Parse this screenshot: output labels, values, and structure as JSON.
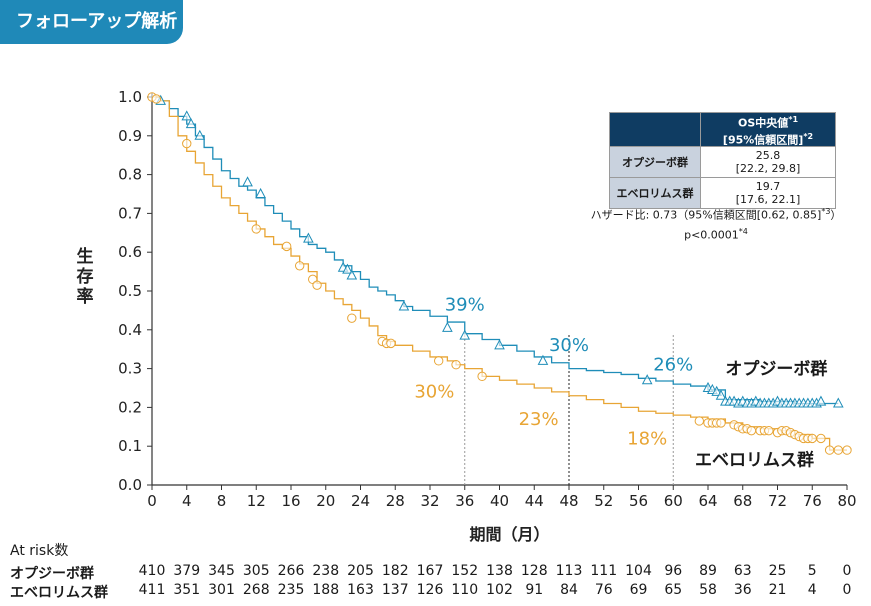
{
  "header": {
    "tag": "フォローアップ解析"
  },
  "chart_data": {
    "type": "line",
    "step": true,
    "xlabel": "期間（月）",
    "ylabel": "生存率",
    "xlim": [
      0,
      80
    ],
    "ylim": [
      0,
      1
    ],
    "xticks": [
      0,
      4,
      8,
      12,
      16,
      20,
      24,
      28,
      32,
      36,
      40,
      44,
      48,
      52,
      56,
      60,
      64,
      68,
      72,
      76,
      80
    ],
    "yticks": [
      "0.0",
      "0.1",
      "0.2",
      "0.3",
      "0.4",
      "0.5",
      "0.6",
      "0.7",
      "0.8",
      "0.9",
      "1.0"
    ],
    "series": [
      {
        "name": "オプジーボ群",
        "color": "#1f8db8",
        "marker": "triangle",
        "points": [
          [
            0,
            1.0
          ],
          [
            1,
            0.99
          ],
          [
            2,
            0.97
          ],
          [
            3,
            0.95
          ],
          [
            4,
            0.93
          ],
          [
            5,
            0.9
          ],
          [
            6,
            0.87
          ],
          [
            7,
            0.84
          ],
          [
            8,
            0.81
          ],
          [
            9,
            0.79
          ],
          [
            10,
            0.77
          ],
          [
            11,
            0.76
          ],
          [
            12,
            0.74
          ],
          [
            13,
            0.72
          ],
          [
            14,
            0.7
          ],
          [
            15,
            0.68
          ],
          [
            16,
            0.66
          ],
          [
            17,
            0.64
          ],
          [
            18,
            0.62
          ],
          [
            19,
            0.61
          ],
          [
            20,
            0.6
          ],
          [
            21,
            0.58
          ],
          [
            22,
            0.565
          ],
          [
            23,
            0.55
          ],
          [
            24,
            0.53
          ],
          [
            25,
            0.51
          ],
          [
            26,
            0.5
          ],
          [
            27,
            0.49
          ],
          [
            28,
            0.475
          ],
          [
            29,
            0.46
          ],
          [
            30,
            0.45
          ],
          [
            32,
            0.435
          ],
          [
            34,
            0.42
          ],
          [
            36,
            0.39
          ],
          [
            38,
            0.375
          ],
          [
            40,
            0.36
          ],
          [
            42,
            0.345
          ],
          [
            44,
            0.33
          ],
          [
            46,
            0.315
          ],
          [
            48,
            0.3
          ],
          [
            50,
            0.295
          ],
          [
            52,
            0.29
          ],
          [
            54,
            0.285
          ],
          [
            56,
            0.275
          ],
          [
            58,
            0.268
          ],
          [
            60,
            0.26
          ],
          [
            62,
            0.255
          ],
          [
            64,
            0.245
          ],
          [
            66,
            0.22
          ],
          [
            70,
            0.215
          ],
          [
            74,
            0.21
          ],
          [
            79,
            0.21
          ]
        ],
        "censor": [
          [
            1,
            0.99
          ],
          [
            4,
            0.95
          ],
          [
            4.5,
            0.93
          ],
          [
            5.5,
            0.9
          ],
          [
            11,
            0.78
          ],
          [
            12.5,
            0.75
          ],
          [
            18,
            0.635
          ],
          [
            22,
            0.56
          ],
          [
            22.5,
            0.555
          ],
          [
            23,
            0.54
          ],
          [
            29,
            0.46
          ],
          [
            34,
            0.405
          ],
          [
            36,
            0.385
          ],
          [
            40,
            0.36
          ],
          [
            45,
            0.32
          ],
          [
            57,
            0.27
          ],
          [
            64,
            0.25
          ],
          [
            64.5,
            0.245
          ],
          [
            65,
            0.24
          ],
          [
            65.5,
            0.23
          ],
          [
            66,
            0.215
          ],
          [
            66.5,
            0.215
          ],
          [
            67,
            0.215
          ],
          [
            67.5,
            0.21
          ],
          [
            68,
            0.215
          ],
          [
            68.5,
            0.21
          ],
          [
            69,
            0.21
          ],
          [
            69.5,
            0.215
          ],
          [
            70,
            0.21
          ],
          [
            70.5,
            0.21
          ],
          [
            71,
            0.21
          ],
          [
            71.5,
            0.21
          ],
          [
            72,
            0.215
          ],
          [
            72.5,
            0.21
          ],
          [
            73,
            0.21
          ],
          [
            73.5,
            0.21
          ],
          [
            74,
            0.21
          ],
          [
            74.5,
            0.21
          ],
          [
            75,
            0.21
          ],
          [
            75.5,
            0.21
          ],
          [
            76,
            0.21
          ],
          [
            76.5,
            0.21
          ],
          [
            77,
            0.215
          ],
          [
            79,
            0.21
          ]
        ]
      },
      {
        "name": "エベロリムス群",
        "color": "#e8a535",
        "marker": "circle",
        "points": [
          [
            0,
            1.0
          ],
          [
            1,
            0.99
          ],
          [
            2,
            0.95
          ],
          [
            3,
            0.9
          ],
          [
            4,
            0.86
          ],
          [
            5,
            0.83
          ],
          [
            6,
            0.8
          ],
          [
            7,
            0.77
          ],
          [
            8,
            0.74
          ],
          [
            9,
            0.72
          ],
          [
            10,
            0.7
          ],
          [
            11,
            0.68
          ],
          [
            12,
            0.66
          ],
          [
            13,
            0.64
          ],
          [
            14,
            0.62
          ],
          [
            15,
            0.61
          ],
          [
            16,
            0.59
          ],
          [
            17,
            0.57
          ],
          [
            18,
            0.55
          ],
          [
            19,
            0.52
          ],
          [
            20,
            0.5
          ],
          [
            21,
            0.48
          ],
          [
            22,
            0.465
          ],
          [
            23,
            0.45
          ],
          [
            24,
            0.43
          ],
          [
            25,
            0.41
          ],
          [
            26,
            0.385
          ],
          [
            27,
            0.37
          ],
          [
            28,
            0.36
          ],
          [
            30,
            0.345
          ],
          [
            32,
            0.33
          ],
          [
            34,
            0.32
          ],
          [
            35,
            0.31
          ],
          [
            36,
            0.3
          ],
          [
            38,
            0.28
          ],
          [
            40,
            0.27
          ],
          [
            42,
            0.26
          ],
          [
            44,
            0.25
          ],
          [
            46,
            0.24
          ],
          [
            48,
            0.23
          ],
          [
            50,
            0.22
          ],
          [
            52,
            0.21
          ],
          [
            54,
            0.2
          ],
          [
            56,
            0.19
          ],
          [
            58,
            0.185
          ],
          [
            60,
            0.18
          ],
          [
            62,
            0.175
          ],
          [
            64,
            0.17
          ],
          [
            66,
            0.16
          ],
          [
            68,
            0.15
          ],
          [
            70,
            0.145
          ],
          [
            72,
            0.14
          ],
          [
            74,
            0.13
          ],
          [
            76,
            0.12
          ],
          [
            78,
            0.09
          ],
          [
            80,
            0.09
          ]
        ],
        "censor": [
          [
            0,
            1.0
          ],
          [
            0.5,
            0.995
          ],
          [
            4,
            0.88
          ],
          [
            12,
            0.66
          ],
          [
            15.5,
            0.615
          ],
          [
            17,
            0.565
          ],
          [
            18.5,
            0.53
          ],
          [
            19,
            0.515
          ],
          [
            23,
            0.43
          ],
          [
            26.5,
            0.37
          ],
          [
            27,
            0.365
          ],
          [
            27.5,
            0.365
          ],
          [
            33,
            0.32
          ],
          [
            35,
            0.31
          ],
          [
            38,
            0.28
          ],
          [
            63,
            0.165
          ],
          [
            64,
            0.16
          ],
          [
            64.5,
            0.16
          ],
          [
            65,
            0.16
          ],
          [
            65.5,
            0.16
          ],
          [
            67,
            0.155
          ],
          [
            67.5,
            0.15
          ],
          [
            68,
            0.145
          ],
          [
            68.5,
            0.145
          ],
          [
            69,
            0.14
          ],
          [
            70,
            0.14
          ],
          [
            70.5,
            0.14
          ],
          [
            71,
            0.14
          ],
          [
            72,
            0.135
          ],
          [
            72.5,
            0.14
          ],
          [
            73,
            0.14
          ],
          [
            73.5,
            0.135
          ],
          [
            74,
            0.13
          ],
          [
            74.5,
            0.125
          ],
          [
            75,
            0.12
          ],
          [
            75.5,
            0.12
          ],
          [
            76,
            0.12
          ],
          [
            77,
            0.12
          ],
          [
            78,
            0.09
          ],
          [
            79,
            0.09
          ],
          [
            80,
            0.09
          ]
        ]
      }
    ],
    "markers": [
      {
        "x": 36,
        "style": "dotted"
      },
      {
        "x": 48,
        "style": "dotted-dark"
      },
      {
        "x": 60,
        "style": "dotted"
      }
    ],
    "annotations": [
      {
        "text": "39%",
        "x": 36,
        "y": 0.45,
        "color": "#1f8db8"
      },
      {
        "text": "30%",
        "x": 48,
        "y": 0.345,
        "color": "#1f8db8"
      },
      {
        "text": "26%",
        "x": 60,
        "y": 0.295,
        "color": "#1f8db8"
      },
      {
        "text": "30%",
        "x": 32.5,
        "y": 0.225,
        "color": "#e8a535"
      },
      {
        "text": "23%",
        "x": 44.5,
        "y": 0.155,
        "color": "#e8a535"
      },
      {
        "text": "18%",
        "x": 57,
        "y": 0.105,
        "color": "#e8a535"
      }
    ],
    "series_labels": [
      {
        "text": "オプジーボ群",
        "x": 66,
        "y": 0.285
      },
      {
        "text": "エベロリムス群",
        "x": 62.5,
        "y": 0.05
      }
    ]
  },
  "os_table": {
    "header_line1": "OS中央値",
    "header_sup1": "*1",
    "header_line2": "[95%信頼区間]",
    "header_sup2": "*2",
    "rows": [
      {
        "label": "オプジーボ群",
        "median": "25.8",
        "ci": "[22.2, 29.8]"
      },
      {
        "label": "エベロリムス群",
        "median": "19.7",
        "ci": "[17.6, 22.1]"
      }
    ]
  },
  "hazard": {
    "text": "ハザード比: 0.73（95%信頼区間[0.62, 0.85]",
    "sup": "*3",
    "close": "）",
    "p": "p<0.0001",
    "p_sup": "*4"
  },
  "at_risk": {
    "title": "At risk数",
    "rows": [
      {
        "label": "オプジーボ群",
        "values": [
          "410",
          "379",
          "345",
          "305",
          "266",
          "238",
          "205",
          "182",
          "167",
          "152",
          "138",
          "128",
          "113",
          "111",
          "104",
          "96",
          "89",
          "63",
          "25",
          "5",
          "0"
        ]
      },
      {
        "label": "エベロリムス群",
        "values": [
          "411",
          "351",
          "301",
          "268",
          "235",
          "188",
          "163",
          "137",
          "126",
          "110",
          "102",
          "91",
          "84",
          "76",
          "69",
          "65",
          "58",
          "36",
          "21",
          "4",
          "0"
        ]
      }
    ]
  }
}
